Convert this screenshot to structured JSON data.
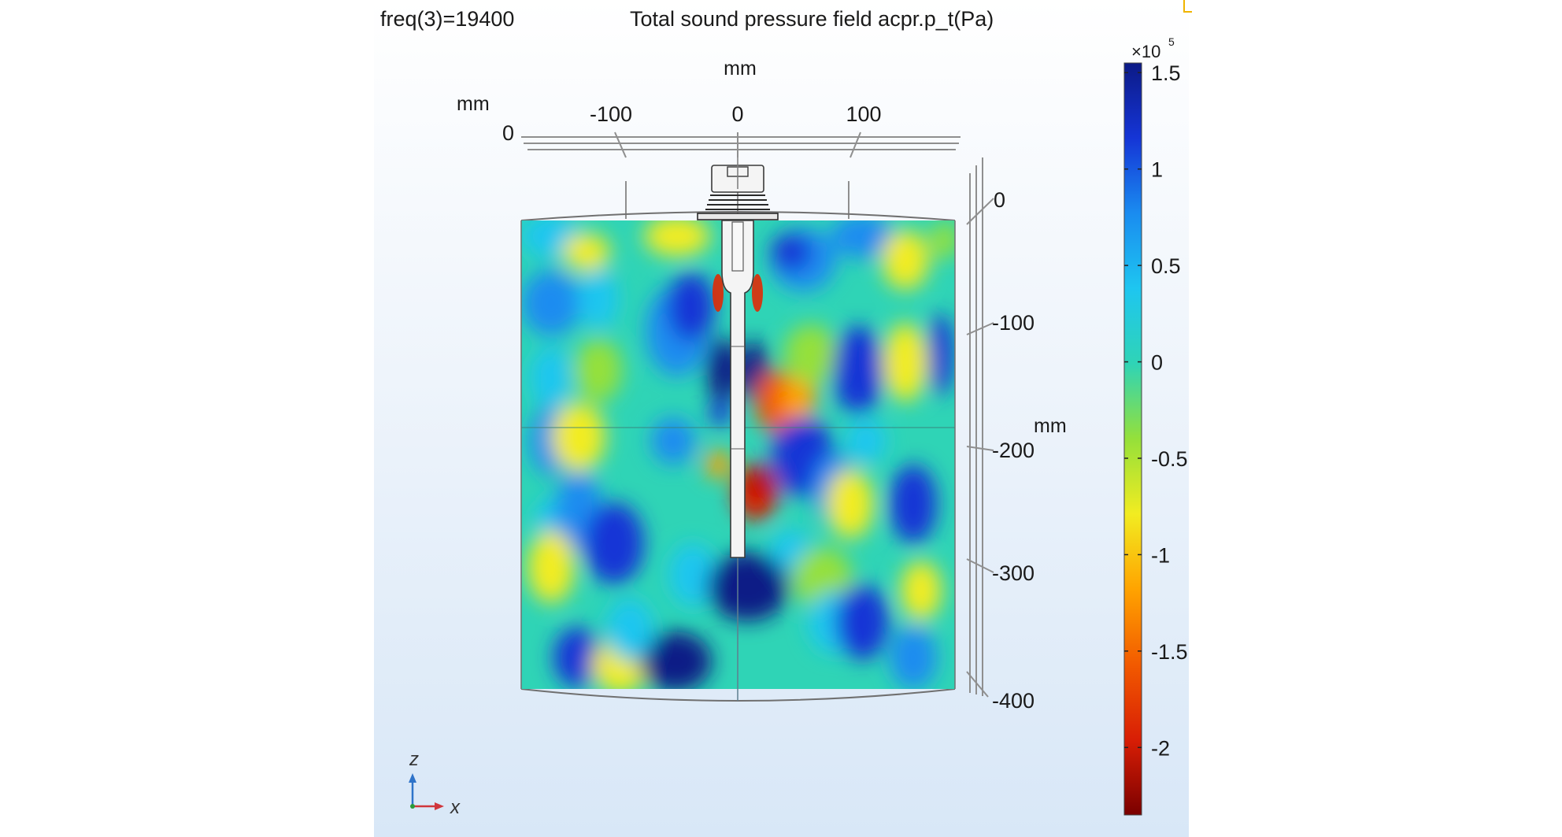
{
  "header": {
    "parameter": "freq(3)=19400",
    "title": "Total sound pressure field acpr.p_t(Pa)"
  },
  "axes": {
    "top": {
      "unit": "mm",
      "ticks": [
        "-100",
        "0",
        "100"
      ]
    },
    "left": {
      "unit": "mm",
      "tick": "0"
    },
    "right": {
      "unit": "mm",
      "ticks": [
        "0",
        "-100",
        "-200",
        "-300",
        "-400"
      ]
    }
  },
  "colorbar": {
    "exponent_base": "×10",
    "exponent_power": "5",
    "ticks": [
      "1.5",
      "1",
      "0.5",
      "0",
      "-0.5",
      "-1",
      "-1.5",
      "-2"
    ],
    "range": [
      -2.35,
      1.55
    ],
    "palette": [
      "#7a0000",
      "#d81e05",
      "#f25a00",
      "#ffa300",
      "#f2ec21",
      "#95e03a",
      "#2fd4b6",
      "#1ec6f0",
      "#1a8cf0",
      "#1535d6",
      "#0c1a86"
    ]
  },
  "triad": {
    "z_label": "z",
    "x_label": "x"
  },
  "colors": {
    "field_background": "#2fd4b6",
    "high_pressure": "#0c1a86",
    "low_pressure": "#d81e05",
    "panel_background": "#e4eef9"
  }
}
